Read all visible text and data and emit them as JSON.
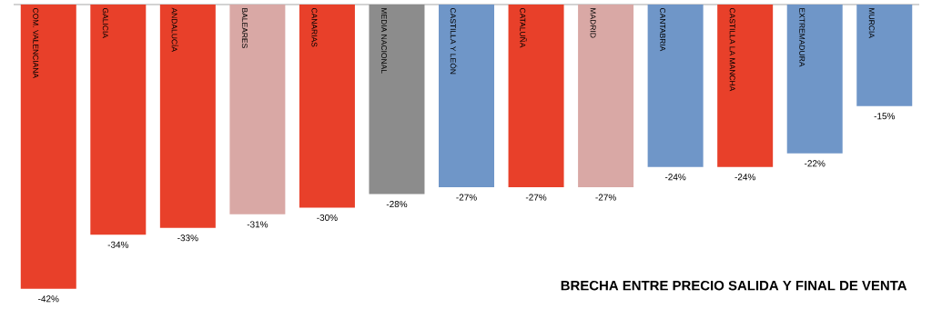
{
  "chart_data": {
    "type": "bar",
    "title": "BRECHA ENTRE PRECIO SALIDA Y FINAL DE VENTA",
    "categories": [
      "COM. VALENCIANA",
      "GALICIA",
      "ANDALUCÍA",
      "BALEARES",
      "CANARIAS",
      "MEDIA NACIONAL",
      "CASTILLA Y LEÓN",
      "CATALUÑA",
      "MADRID",
      "CANTABRIA",
      "CASTILLA LA MANCHA",
      "EXTREMADURA",
      "MURCIA"
    ],
    "values": [
      -42,
      -34,
      -33,
      -31,
      -30,
      -28,
      -27,
      -27,
      -27,
      -24,
      -24,
      -22,
      -15
    ],
    "value_labels": [
      "-42%",
      "-34%",
      "-33%",
      "-31%",
      "-30%",
      "-28%",
      "-27%",
      "-27%",
      "-27%",
      "-24%",
      "-24%",
      "-22%",
      "-15%"
    ],
    "colors": [
      "#e8402a",
      "#e8402a",
      "#e8402a",
      "#d9a8a5",
      "#e8402a",
      "#8c8c8c",
      "#6f96c8",
      "#e8402a",
      "#d9a8a5",
      "#6f96c8",
      "#e8402a",
      "#6f96c8",
      "#6f96c8"
    ]
  }
}
